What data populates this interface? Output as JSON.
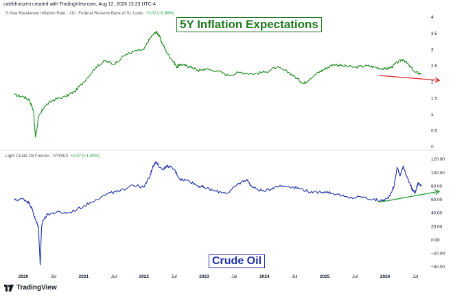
{
  "header": {
    "credit": "calebfranzen created with TradingView.com, Aug 12, 2026 13:23 UTC-4"
  },
  "footer": {
    "logo_text": "TradingView"
  },
  "colors": {
    "inflation_line": "#1f8a1f",
    "oil_line": "#1e2ea8",
    "trend_red": "#e03131",
    "trend_green": "#2a9d3a"
  },
  "chart_data": [
    {
      "type": "line",
      "title": "5Y Inflation Expectations",
      "legend": {
        "symbol": "5-Year Breakeven Inflation Rate · 1D · Federal Reserve Bank of St. Louis",
        "change": "−0.02 (−0.89%)"
      },
      "ylim": [
        0,
        4
      ],
      "yticks": [
        "0",
        "0.5",
        "1",
        "1.5",
        "2",
        "2.5",
        "3",
        "3.5",
        "4"
      ],
      "x": [
        2019.85,
        2020.0,
        2020.1,
        2020.17,
        2020.2,
        2020.22,
        2020.25,
        2020.35,
        2020.5,
        2020.7,
        2020.85,
        2021.0,
        2021.2,
        2021.35,
        2021.5,
        2021.7,
        2021.85,
        2022.0,
        2022.1,
        2022.2,
        2022.25,
        2022.3,
        2022.4,
        2022.5,
        2022.55,
        2022.6,
        2022.7,
        2022.8,
        2022.9,
        2023.0,
        2023.2,
        2023.4,
        2023.6,
        2023.8,
        2024.0,
        2024.2,
        2024.4,
        2024.55,
        2024.65,
        2024.75,
        2024.9,
        2025.0,
        2025.15,
        2025.3,
        2025.5,
        2025.7,
        2025.85,
        2026.0,
        2026.1,
        2026.2,
        2026.3,
        2026.4,
        2026.5,
        2026.6
      ],
      "values": [
        1.6,
        1.55,
        1.45,
        1.1,
        0.3,
        0.5,
        0.9,
        1.25,
        1.45,
        1.55,
        1.7,
        2.0,
        2.45,
        2.65,
        2.55,
        2.85,
        2.95,
        3.0,
        3.35,
        3.55,
        3.45,
        3.2,
        2.85,
        2.6,
        2.45,
        2.55,
        2.5,
        2.45,
        2.35,
        2.4,
        2.35,
        2.2,
        2.3,
        2.25,
        2.3,
        2.45,
        2.3,
        2.1,
        1.95,
        2.1,
        2.3,
        2.4,
        2.55,
        2.5,
        2.45,
        2.5,
        2.45,
        2.4,
        2.45,
        2.6,
        2.7,
        2.5,
        2.3,
        2.25
      ],
      "annotations": [
        {
          "type": "arrow",
          "color": "red",
          "from": [
            2025.9,
            2.2
          ],
          "to": [
            2026.9,
            2.05
          ]
        }
      ]
    },
    {
      "type": "line",
      "title": "Crude Oil",
      "legend": {
        "symbol": "Light Crude Oil Futures · NYMEX",
        "change": "+1.07 (+1.30%)"
      },
      "ylim": [
        -40,
        120
      ],
      "yticks": [
        "−40.00",
        "−20.00",
        "0.00",
        "20.00",
        "40.00",
        "60.00",
        "80.00",
        "100.00",
        "120.00"
      ],
      "x": [
        2019.85,
        2020.0,
        2020.1,
        2020.15,
        2020.2,
        2020.25,
        2020.28,
        2020.3,
        2020.32,
        2020.4,
        2020.55,
        2020.75,
        2021.0,
        2021.2,
        2021.45,
        2021.6,
        2021.8,
        2022.0,
        2022.1,
        2022.15,
        2022.2,
        2022.3,
        2022.4,
        2022.5,
        2022.6,
        2022.75,
        2022.9,
        2023.0,
        2023.2,
        2023.4,
        2023.55,
        2023.7,
        2023.8,
        2024.0,
        2024.2,
        2024.4,
        2024.6,
        2024.8,
        2025.0,
        2025.2,
        2025.4,
        2025.6,
        2025.8,
        2025.95,
        2026.05,
        2026.15,
        2026.2,
        2026.25,
        2026.3,
        2026.4,
        2026.45,
        2026.5,
        2026.55,
        2026.6
      ],
      "values": [
        59,
        61,
        55,
        45,
        30,
        20,
        -37,
        15,
        28,
        38,
        41,
        40,
        50,
        60,
        70,
        72,
        82,
        78,
        95,
        110,
        115,
        105,
        110,
        105,
        90,
        88,
        80,
        78,
        72,
        70,
        82,
        90,
        78,
        72,
        80,
        80,
        76,
        70,
        72,
        68,
        62,
        64,
        60,
        58,
        62,
        80,
        108,
        95,
        110,
        85,
        75,
        70,
        85,
        80
      ],
      "annotations": [
        {
          "type": "arrow",
          "color": "green",
          "from": [
            2025.9,
            56
          ],
          "to": [
            2026.9,
            72
          ]
        }
      ]
    }
  ],
  "x_axis": {
    "ticks": [
      {
        "label": "2020",
        "x": 2020.0,
        "major": true
      },
      {
        "label": "Jul",
        "x": 2020.5,
        "major": false
      },
      {
        "label": "2021",
        "x": 2021.0,
        "major": true
      },
      {
        "label": "Jul",
        "x": 2021.5,
        "major": false
      },
      {
        "label": "2022",
        "x": 2022.0,
        "major": true
      },
      {
        "label": "Jul",
        "x": 2022.5,
        "major": false
      },
      {
        "label": "2023",
        "x": 2023.0,
        "major": true
      },
      {
        "label": "Jul",
        "x": 2023.5,
        "major": false
      },
      {
        "label": "2024",
        "x": 2024.0,
        "major": true
      },
      {
        "label": "Jul",
        "x": 2024.5,
        "major": false
      },
      {
        "label": "2025",
        "x": 2025.0,
        "major": true
      },
      {
        "label": "Jul",
        "x": 2025.5,
        "major": false
      },
      {
        "label": "2026",
        "x": 2026.0,
        "major": true
      },
      {
        "label": "Jul",
        "x": 2026.5,
        "major": false
      }
    ]
  }
}
